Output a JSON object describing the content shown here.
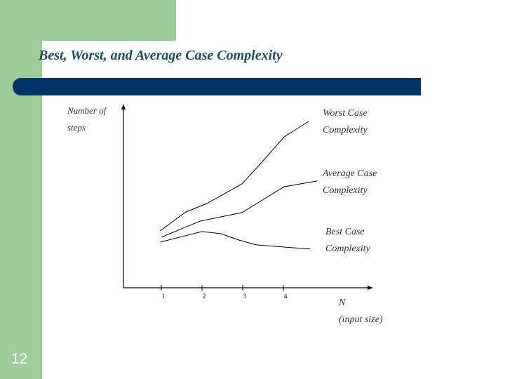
{
  "slide_title": "Best, Worst, and Average Case Complexity",
  "slide_number": "12",
  "chart_data": {
    "type": "line",
    "y_label": "Number of\nsteps",
    "x_label": "N\n(input size)",
    "xlim": [
      0.07,
      6.17
    ],
    "ylim": [
      0,
      100
    ],
    "xticks": [
      1,
      2,
      3,
      4
    ],
    "series": [
      {
        "name": "Worst Case\nComplexity",
        "color": "#000000",
        "x": [
          0.97,
          1.6,
          2.12,
          2.55,
          2.98,
          3.41,
          4.02,
          4.62
        ],
        "values": [
          31.2,
          41.5,
          46.2,
          51.5,
          56.9,
          67.3,
          82.7,
          91.2
        ]
      },
      {
        "name": "Average Case\nComplexity",
        "color": "#000000",
        "x": [
          1.0,
          1.95,
          2.98,
          4.02,
          4.83
        ],
        "values": [
          27.7,
          36.5,
          41.2,
          55.4,
          58.5
        ]
      },
      {
        "name": "Best Case\nComplexity",
        "color": "#000000",
        "x": [
          0.97,
          1.52,
          2.0,
          2.47,
          2.9,
          3.33,
          4.02,
          4.66
        ],
        "values": [
          25,
          28.1,
          30.8,
          29.6,
          26.2,
          23.5,
          22.3,
          21.2
        ]
      }
    ]
  }
}
